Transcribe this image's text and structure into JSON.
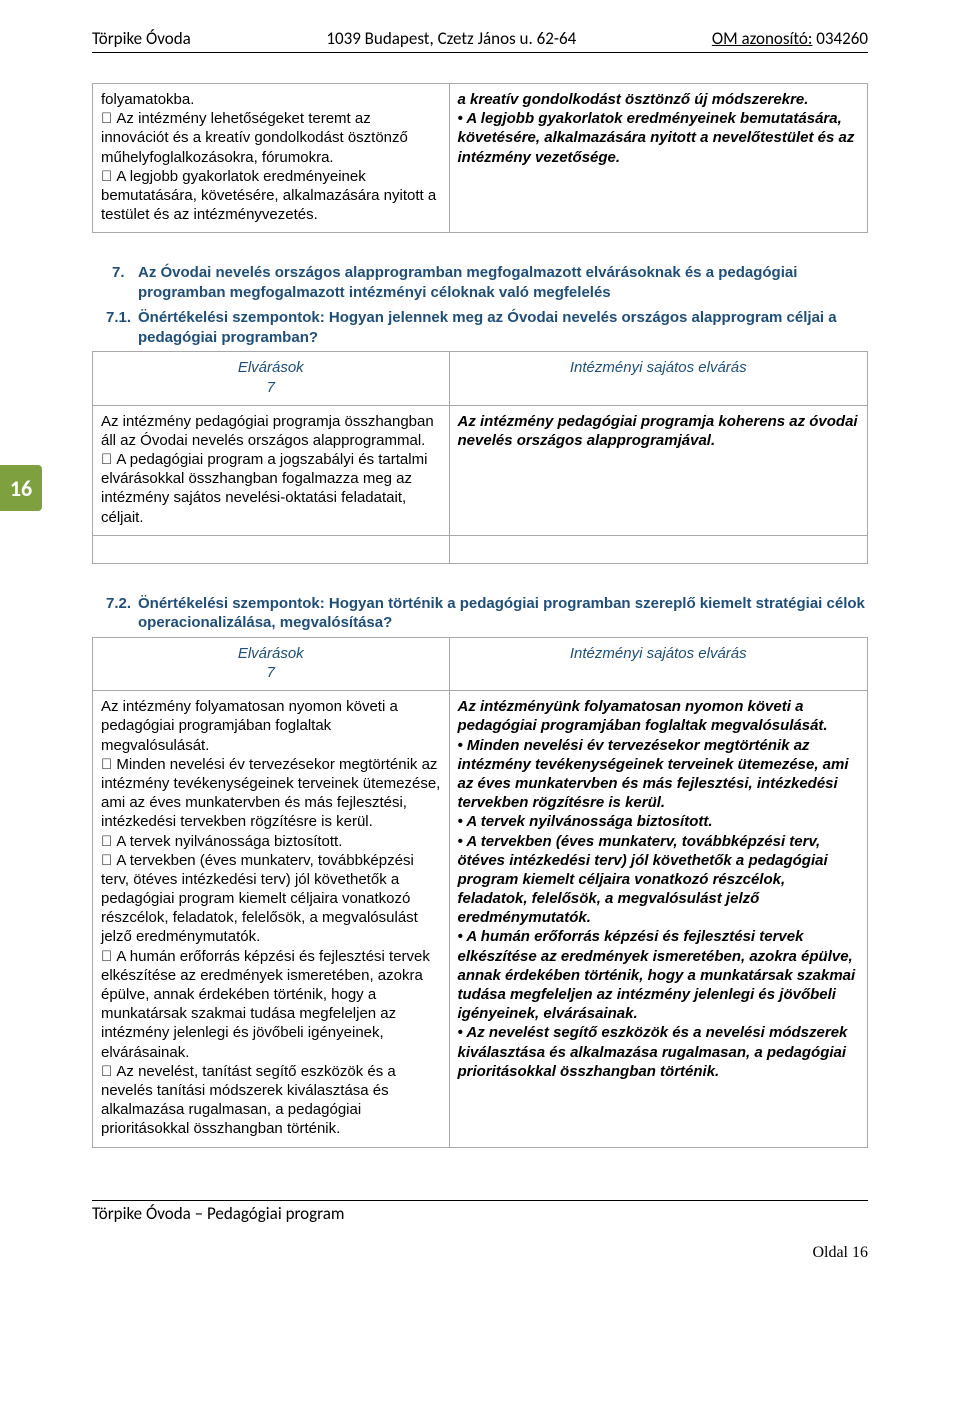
{
  "header": {
    "left": "Törpike Óvoda",
    "center": "1039 Budapest, Czetz János u. 62-64",
    "right_label": "OM azonosító:",
    "right_value": "034260"
  },
  "page_tab": "16",
  "table1": {
    "left": "folyamatokba.\n Az intézmény lehetőségeket teremt az innovációt és a kreatív gondolkodást ösztönző műhelyfoglalkozásokra, fórumokra.\n A legjobb gyakorlatok eredményeinek bemutatására, követésére, alkalmazására nyitott a testület és az intézményvezetés.",
    "right": "a kreatív gondolkodást ösztönző új módszerekre.\n• A legjobb gyakorlatok eredményeinek bemutatására, követésére, alkalmazására nyitott a nevelőtestület és az intézmény vezetősége."
  },
  "section7": {
    "num": "7.",
    "title": "Az Óvodai nevelés országos alapprogramban megfogalmazott elvárásoknak és a pedagógiai programban megfogalmazott intézményi céloknak való megfelelés"
  },
  "section71": {
    "num": "7.1.",
    "title": "Önértékelési szempontok: Hogyan jelennek meg az Óvodai nevelés országos alapprogram céljai a pedagógiai programban?"
  },
  "table71": {
    "head_left": "Elvárások\n7",
    "head_right": "Intézményi sajátos elvárás",
    "left": "Az intézmény pedagógiai programja összhangban áll az Óvodai nevelés országos alapprogrammal.\n A pedagógiai program a jogszabályi és tartalmi elvárásokkal összhangban fogalmazza meg az intézmény sajátos nevelési-oktatási feladatait, céljait.",
    "right": "Az intézmény pedagógiai programja koherens az óvodai nevelés országos alapprogramjával."
  },
  "section72": {
    "num": "7.2.",
    "title": "Önértékelési szempontok: Hogyan történik a pedagógiai programban szereplő kiemelt stratégiai célok operacionalizálása, megvalósítása?"
  },
  "table72": {
    "head_left": "Elvárások\n7",
    "head_right": "Intézményi sajátos elvárás",
    "left": "Az intézmény folyamatosan nyomon követi a pedagógiai programjában foglaltak megvalósulását.\n Minden nevelési év tervezésekor megtörténik az intézmény tevékenységeinek terveinek ütemezése, ami az éves munkatervben és más fejlesztési, intézkedési tervekben rögzítésre is kerül.\n A tervek nyilvánossága biztosított.\n A tervekben (éves munkaterv, továbbképzési terv, ötéves intézkedési terv) jól követhetők a pedagógiai program kiemelt céljaira vonatkozó részcélok, feladatok, felelősök, a megvalósulást jelző eredménymutatók.\n A humán erőforrás képzési és fejlesztési tervek elkészítése az eredmények ismeretében, azokra épülve, annak érdekében történik, hogy a munkatársak szakmai tudása megfeleljen az intézmény jelenlegi és jövőbeli igényeinek, elvárásainak.\n Az nevelést, tanítást segítő eszközök és a nevelés tanítási módszerek kiválasztása és alkalmazása rugalmasan, a pedagógiai prioritásokkal összhangban történik.",
    "right": "Az intézményünk folyamatosan nyomon követi a pedagógiai programjában foglaltak megvalósulását.\n• Minden nevelési év tervezésekor megtörténik az intézmény tevékenységeinek terveinek ütemezése, ami az éves munkatervben és más fejlesztési, intézkedési tervekben rögzítésre is kerül.\n• A tervek nyilvánossága biztosított.\n• A tervekben (éves munkaterv, továbbképzési terv, ötéves intézkedési terv) jól követhetők a pedagógiai program kiemelt céljaira vonatkozó részcélok, feladatok, felelősök, a megvalósulást jelző eredménymutatók.\n• A humán erőforrás képzési és fejlesztési tervek elkészítése az eredmények ismeretében, azokra épülve, annak érdekében történik, hogy a munkatársak szakmai tudása megfeleljen az intézmény jelenlegi és jövőbeli igényeinek, elvárásainak.\n• Az nevelést segítő eszközök és a nevelési módszerek kiválasztása és alkalmazása rugalmasan, a pedagógiai prioritásokkal összhangban történik."
  },
  "footer": {
    "left": "Törpike Óvoda – Pedagógiai program",
    "right": "Oldal 16"
  },
  "colors": {
    "heading": "#1f4e79",
    "tab_bg": "#7ea03e",
    "border": "#a8a8a8"
  }
}
